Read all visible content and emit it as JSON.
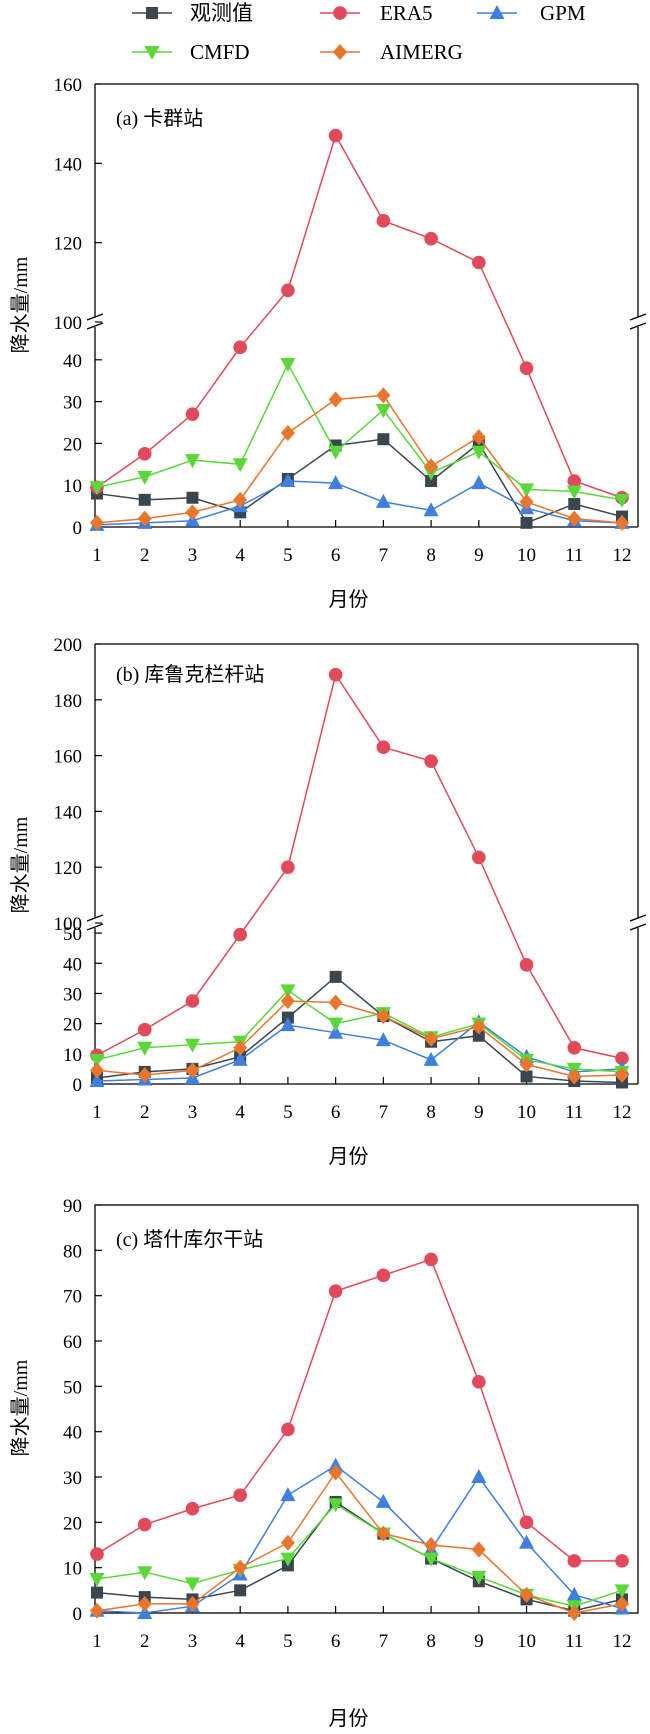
{
  "legend": {
    "items": [
      {
        "name": "观测值",
        "color": "#3a4650",
        "marker": "square"
      },
      {
        "name": "ERA5",
        "color": "#e04a5a",
        "marker": "circle"
      },
      {
        "name": "GPM",
        "color": "#3f7fe0",
        "marker": "triangle-up"
      },
      {
        "name": "CMFD",
        "color": "#5ad83a",
        "marker": "triangle-down"
      },
      {
        "name": "AIMERG",
        "color": "#e8762c",
        "marker": "diamond"
      }
    ]
  },
  "chart_data": [
    {
      "type": "line",
      "title": "(a) 卡群站",
      "xlabel": "月份",
      "ylabel": "降水量/mm",
      "categories": [
        "1",
        "2",
        "3",
        "4",
        "5",
        "6",
        "7",
        "8",
        "9",
        "10",
        "11",
        "12"
      ],
      "axis_break": {
        "lower_range": [
          0,
          50
        ],
        "upper_range": [
          100,
          160
        ]
      },
      "lower_ticks": [
        0,
        10,
        20,
        30,
        40
      ],
      "upper_ticks": [
        100,
        120,
        140,
        160
      ],
      "series": [
        {
          "name": "观测值",
          "values": [
            8,
            6.5,
            7,
            3.5,
            11.5,
            19.5,
            21,
            11,
            20,
            1,
            5.5,
            2.5
          ]
        },
        {
          "name": "ERA5",
          "values": [
            9.5,
            17.5,
            27,
            43,
            108,
            147,
            125.5,
            121,
            115,
            38,
            11,
            7
          ]
        },
        {
          "name": "GPM",
          "values": [
            0.5,
            1,
            1.5,
            5,
            11,
            10.5,
            6,
            4,
            10.5,
            4.5,
            1.5,
            1
          ]
        },
        {
          "name": "CMFD",
          "values": [
            9.5,
            12,
            16,
            15,
            39,
            18,
            28,
            13,
            18,
            9,
            8.5,
            6.5
          ]
        },
        {
          "name": "AIMERG",
          "values": [
            1,
            2,
            3.5,
            6.5,
            22.5,
            30.5,
            31.5,
            14.5,
            21.5,
            6,
            2,
            1
          ]
        }
      ]
    },
    {
      "type": "line",
      "title": "(b) 库鲁克栏杆站",
      "xlabel": "月份",
      "ylabel": "降水量/mm",
      "categories": [
        "1",
        "2",
        "3",
        "4",
        "5",
        "6",
        "7",
        "8",
        "9",
        "10",
        "11",
        "12"
      ],
      "axis_break": {
        "lower_range": [
          0,
          55
        ],
        "upper_range": [
          100,
          200
        ]
      },
      "lower_ticks": [
        0,
        10,
        20,
        30,
        40,
        50
      ],
      "upper_ticks": [
        100,
        120,
        140,
        160,
        180,
        200
      ],
      "series": [
        {
          "name": "观测值",
          "values": [
            2,
            4,
            5,
            9,
            22,
            35.5,
            22.5,
            14,
            16,
            2.5,
            1,
            0.5
          ]
        },
        {
          "name": "ERA5",
          "values": [
            9.5,
            18,
            27.5,
            49.5,
            120,
            189,
            163,
            158,
            123.5,
            39.5,
            12,
            8.5
          ]
        },
        {
          "name": "GPM",
          "values": [
            1,
            1.5,
            2,
            8,
            19.5,
            17,
            14.5,
            8,
            20.5,
            9,
            4,
            5
          ]
        },
        {
          "name": "CMFD",
          "values": [
            8,
            12,
            13,
            14,
            31,
            20,
            23.5,
            15.5,
            20,
            8,
            5,
            4
          ]
        },
        {
          "name": "AIMERG",
          "values": [
            4.5,
            3,
            4.5,
            12,
            27.5,
            27,
            22.5,
            15,
            19,
            6.5,
            2.5,
            3
          ]
        }
      ]
    },
    {
      "type": "line",
      "title": "(c) 塔什库尔干站",
      "xlabel": "月份",
      "ylabel": "降水量/mm",
      "categories": [
        "1",
        "2",
        "3",
        "4",
        "5",
        "6",
        "7",
        "8",
        "9",
        "10",
        "11",
        "12"
      ],
      "ylim": [
        0,
        90
      ],
      "yticks": [
        0,
        10,
        20,
        30,
        40,
        50,
        60,
        70,
        80,
        90
      ],
      "series": [
        {
          "name": "观测值",
          "values": [
            4.5,
            3.5,
            3,
            5,
            10.5,
            24.5,
            17.5,
            12,
            7,
            3,
            0.5,
            3
          ]
        },
        {
          "name": "ERA5",
          "values": [
            13,
            19.5,
            23,
            26,
            40.5,
            71,
            74.5,
            78,
            51,
            20,
            11.5,
            11.5
          ]
        },
        {
          "name": "GPM",
          "values": [
            0.5,
            0,
            1.5,
            8.5,
            26,
            32.5,
            24.5,
            14,
            30,
            15.5,
            4,
            1
          ]
        },
        {
          "name": "CMFD",
          "values": [
            7.5,
            9,
            6.5,
            9.5,
            12,
            24,
            17.5,
            12,
            8,
            4,
            1.5,
            5
          ]
        },
        {
          "name": "AIMERG",
          "values": [
            0.5,
            2,
            2,
            10,
            15.5,
            31,
            17.5,
            15,
            14,
            4,
            0,
            2
          ]
        }
      ]
    }
  ]
}
